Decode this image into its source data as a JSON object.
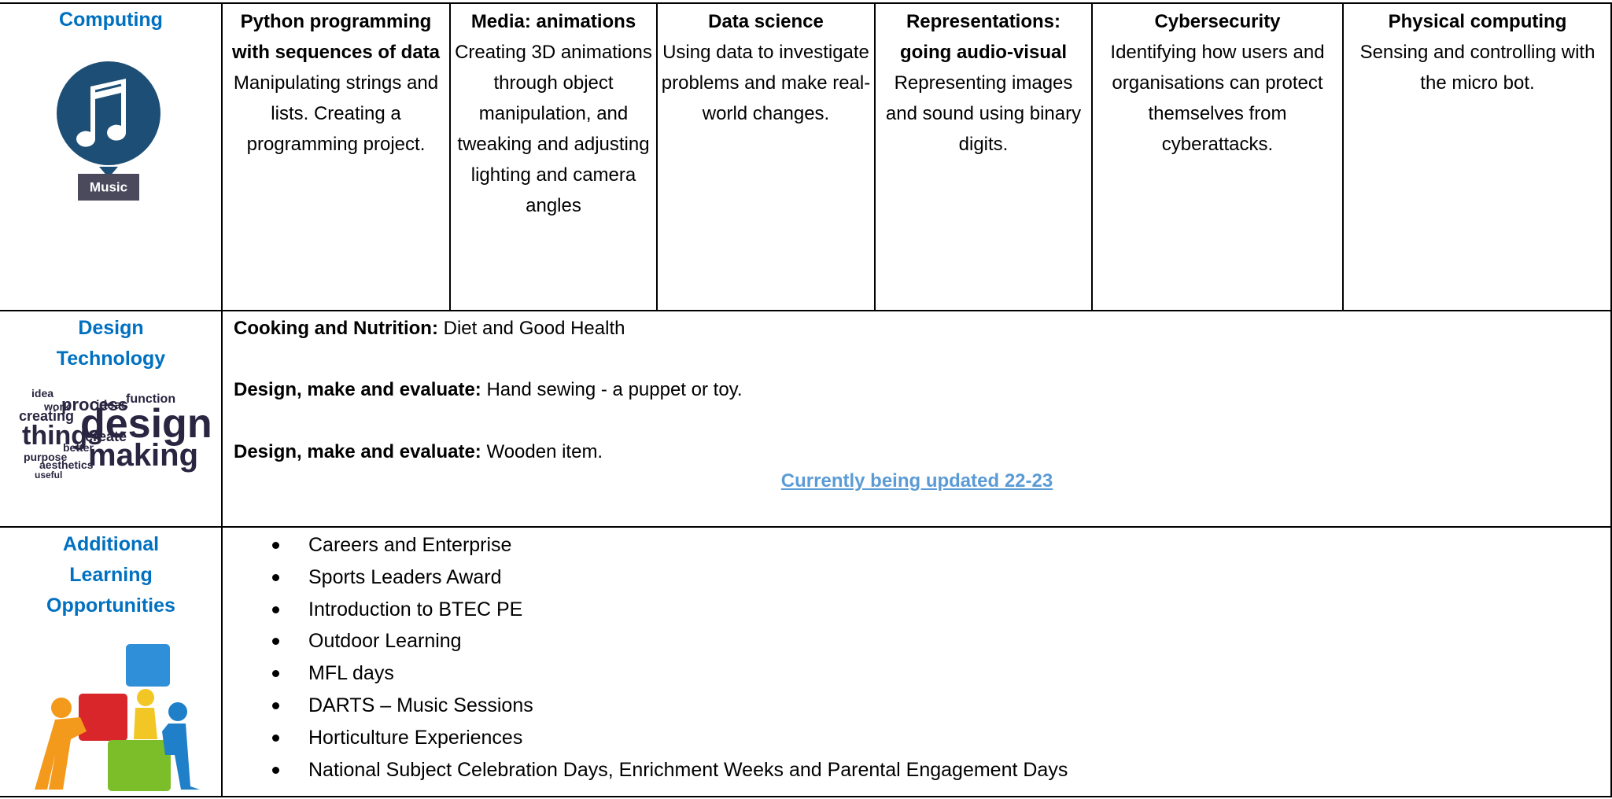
{
  "rows": [
    {
      "subject": "Computing",
      "icon_label": "Music",
      "units": [
        {
          "title": "Python programming with sequences of data",
          "text": "Manipulating strings and lists. Creating a programming project."
        },
        {
          "title": "Media: animations",
          "text": "Creating 3D animations through object manipulation, and tweaking and adjusting lighting and camera angles"
        },
        {
          "title": "Data science",
          "text": "Using data to investigate problems and make real-world changes."
        },
        {
          "title": "Representations: going audio-visual",
          "text": "Representing images and sound using binary digits."
        },
        {
          "title": "Cybersecurity",
          "text": "Identifying how users and organisations can protect themselves from cyberattacks."
        },
        {
          "title": "Physical computing",
          "text": "Sensing and controlling with the micro bot."
        }
      ]
    },
    {
      "subject": "Design Technology",
      "word_cloud": [
        "idea",
        "work",
        "process",
        "ideas",
        "function",
        "creating",
        "design",
        "things",
        "create",
        "better",
        "making",
        "purpose",
        "aesthetics",
        "useful"
      ],
      "items": [
        {
          "title": "Cooking and Nutrition:",
          "text": "Diet and Good Health"
        },
        {
          "title": "Design, make and evaluate:",
          "text": "Hand sewing - a puppet or toy."
        },
        {
          "title": "Design, make and evaluate:",
          "text": "Wooden item."
        }
      ],
      "note": "Currently being updated 22-23"
    },
    {
      "subject": "Additional Learning Opportunities",
      "list": [
        "Careers and Enterprise",
        "Sports Leaders Award",
        "Introduction to BTEC PE",
        "Outdoor Learning",
        "MFL days",
        "DARTS – Music Sessions",
        "Horticulture Experiences",
        "National Subject Celebration Days, Enrichment Weeks and Parental Engagement Days"
      ]
    }
  ]
}
